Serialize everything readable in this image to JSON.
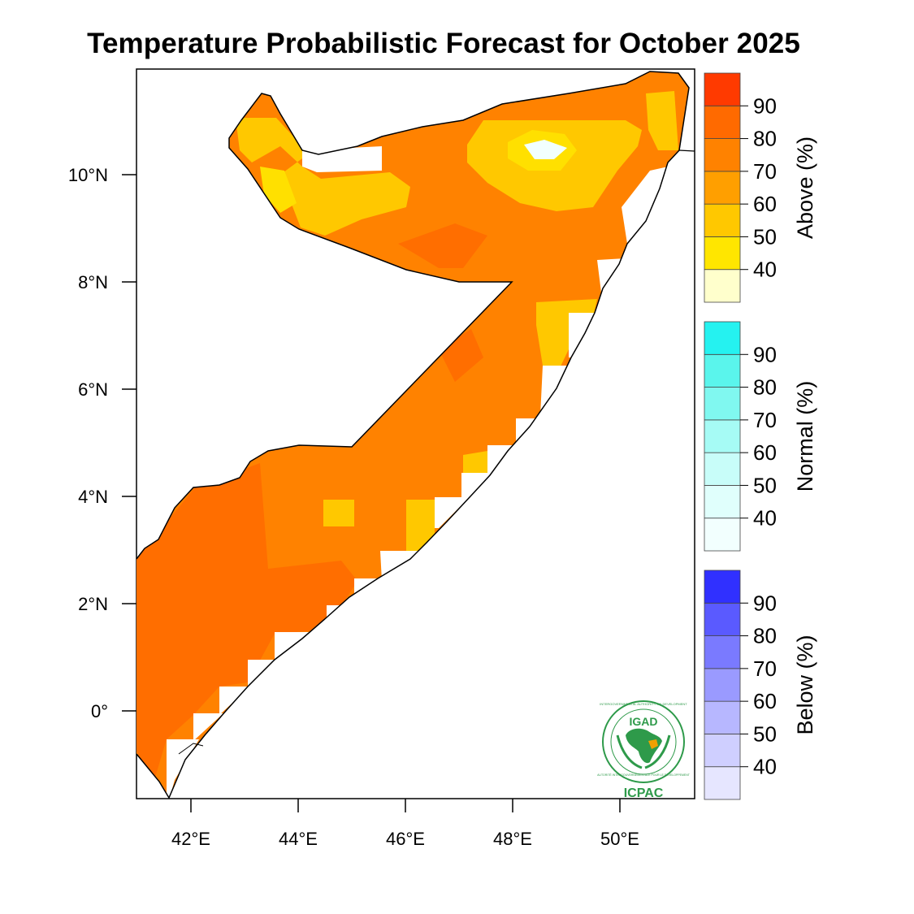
{
  "title": "Temperature Probabilistic Forecast for October 2025",
  "map": {
    "y_axis_labels": [
      "10°N",
      "8°N",
      "6°N",
      "4°N",
      "2°N",
      "0°"
    ],
    "x_axis_labels": [
      "42°E",
      "44°E",
      "46°E",
      "48°E",
      "50°E"
    ],
    "region": "Somalia",
    "highlighted_categories": [
      "Above 40-50",
      "Above 50-60",
      "Above 60-70",
      "Above 70-80",
      "Below 40 / white patch"
    ]
  },
  "legend": {
    "bins": [
      "40",
      "50",
      "60",
      "70",
      "80",
      "90"
    ],
    "above": {
      "title": "Above (%)",
      "colors": [
        "#ffffcc",
        "#ffe600",
        "#ffc800",
        "#ff9f00",
        "#ff8200",
        "#ff6a00",
        "#ff3a00"
      ]
    },
    "normal": {
      "title": "Normal (%)",
      "colors": [
        "#f2fffe",
        "#e0fffc",
        "#c8fdf9",
        "#a6fbf5",
        "#80f8f0",
        "#5af5ec",
        "#25f2f0"
      ]
    },
    "below": {
      "title": "Below (%)",
      "colors": [
        "#e6e6ff",
        "#cfcfff",
        "#b7b7ff",
        "#9a9aff",
        "#7a7aff",
        "#5a5aff",
        "#3030ff"
      ]
    }
  },
  "logo": {
    "top_text": "INTERGOVERNMENTAL AUTHORITY ON DEVELOPMENT",
    "bottom_text": "AUTORITÉ INTERGOUVERNEMENTALE POUR LE DÉVELOPPEMENT",
    "abbrev": "IGAD",
    "caption": "ICPAC"
  }
}
